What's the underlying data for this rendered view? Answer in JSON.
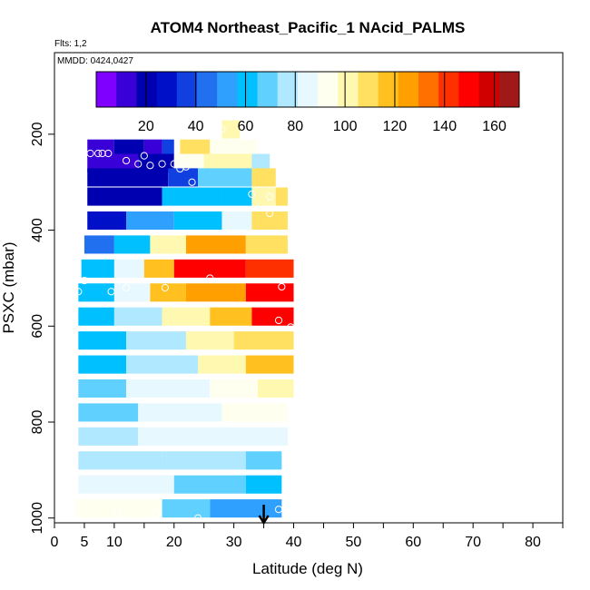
{
  "chart_data": {
    "type": "heatmap",
    "title": "ATOM4 Northeast_Pacific_1 NAcid_PALMS",
    "flights_label": "Flts: 1,2",
    "dates_label": "MMDD: 0424,0427",
    "xlabel": "Latitude (deg N)",
    "ylabel": "PSXC (mbar)",
    "xlim": [
      0,
      85
    ],
    "ylim": [
      1010,
      30
    ],
    "x_ticks": [
      0,
      5,
      10,
      20,
      30,
      40,
      50,
      60,
      70,
      80
    ],
    "y_ticks": [
      200,
      400,
      600,
      800,
      1000
    ],
    "colorbar": {
      "range": [
        0,
        170
      ],
      "ticks": [
        20,
        40,
        60,
        80,
        100,
        120,
        140,
        160
      ],
      "colors": [
        "#8000ff",
        "#3a00d8",
        "#0000b0",
        "#0010c8",
        "#1040e0",
        "#2070f0",
        "#30a0ff",
        "#00c0ff",
        "#60d0ff",
        "#b0e8ff",
        "#e8f8ff",
        "#fffff0",
        "#fff8b0",
        "#ffe060",
        "#ffc020",
        "#ffa000",
        "#ff7000",
        "#ff3000",
        "#ff0000",
        "#d00000",
        "#a01818"
      ]
    },
    "rows": [
      {
        "p": 190,
        "segments": [
          [
            28,
            31,
            100
          ]
        ]
      },
      {
        "p": 230,
        "segments": [
          [
            5.5,
            10,
            15
          ],
          [
            10,
            15,
            22
          ],
          [
            15,
            18,
            10
          ],
          [
            18,
            20,
            40
          ],
          [
            21,
            26,
            108
          ],
          [
            26,
            34,
            95
          ]
        ]
      },
      {
        "p": 260,
        "segments": [
          [
            5.5,
            14,
            14
          ],
          [
            14,
            20,
            18
          ],
          [
            20,
            25,
            96
          ],
          [
            25,
            33,
            104
          ],
          [
            33,
            36,
            80
          ]
        ]
      },
      {
        "p": 290,
        "segments": [
          [
            5.5,
            19,
            22
          ],
          [
            19,
            24,
            38
          ],
          [
            24,
            33,
            70
          ],
          [
            33,
            37,
            110
          ]
        ]
      },
      {
        "p": 330,
        "segments": [
          [
            5.5,
            18,
            24
          ],
          [
            18,
            28,
            58
          ],
          [
            28,
            33,
            60
          ],
          [
            33,
            37,
            100
          ],
          [
            37,
            39,
            108
          ]
        ]
      },
      {
        "p": 380,
        "segments": [
          [
            5.5,
            12,
            28
          ],
          [
            12,
            20,
            50
          ],
          [
            20,
            28,
            64
          ],
          [
            28,
            33,
            86
          ],
          [
            33,
            39,
            110
          ]
        ]
      },
      {
        "p": 430,
        "segments": [
          [
            5,
            10,
            42
          ],
          [
            10,
            16,
            64
          ],
          [
            16,
            22,
            100
          ],
          [
            22,
            32,
            124
          ],
          [
            32,
            39,
            112
          ]
        ]
      },
      {
        "p": 480,
        "segments": [
          [
            4.5,
            10,
            60
          ],
          [
            10,
            15,
            86
          ],
          [
            15,
            20,
            120
          ],
          [
            20,
            32,
            152
          ],
          [
            32,
            40,
            142
          ]
        ]
      },
      {
        "p": 530,
        "segments": [
          [
            4,
            10,
            62
          ],
          [
            10,
            16,
            82
          ],
          [
            16,
            22,
            118
          ],
          [
            22,
            32,
            126
          ],
          [
            32,
            40,
            146
          ]
        ]
      },
      {
        "p": 580,
        "segments": [
          [
            4,
            10,
            60
          ],
          [
            10,
            18,
            80
          ],
          [
            18,
            26,
            100
          ],
          [
            26,
            33,
            114
          ],
          [
            33,
            40,
            150
          ]
        ]
      },
      {
        "p": 630,
        "segments": [
          [
            4,
            12,
            62
          ],
          [
            12,
            22,
            80
          ],
          [
            22,
            30,
            100
          ],
          [
            30,
            40,
            112
          ]
        ]
      },
      {
        "p": 680,
        "segments": [
          [
            4,
            12,
            64
          ],
          [
            12,
            24,
            80
          ],
          [
            24,
            32,
            102
          ],
          [
            32,
            40,
            114
          ]
        ]
      },
      {
        "p": 730,
        "segments": [
          [
            4,
            12,
            66
          ],
          [
            12,
            26,
            82
          ],
          [
            26,
            34,
            96
          ],
          [
            34,
            40,
            104
          ]
        ]
      },
      {
        "p": 780,
        "segments": [
          [
            4,
            14,
            70
          ],
          [
            14,
            28,
            84
          ],
          [
            28,
            39,
            94
          ]
        ]
      },
      {
        "p": 830,
        "segments": [
          [
            4,
            14,
            74
          ],
          [
            14,
            30,
            82
          ],
          [
            30,
            39,
            86
          ]
        ]
      },
      {
        "p": 880,
        "segments": [
          [
            4,
            18,
            78
          ],
          [
            18,
            32,
            76
          ],
          [
            32,
            38,
            70
          ]
        ]
      },
      {
        "p": 930,
        "segments": [
          [
            4,
            20,
            82
          ],
          [
            20,
            32,
            66
          ],
          [
            32,
            38,
            58
          ]
        ]
      },
      {
        "p": 980,
        "segments": [
          [
            3.5,
            18,
            96
          ],
          [
            18,
            26,
            72
          ],
          [
            26,
            38,
            56
          ]
        ]
      }
    ],
    "sample_points": [
      [
        6,
        240
      ],
      [
        7.3,
        240
      ],
      [
        8,
        240
      ],
      [
        9,
        240
      ],
      [
        12,
        255
      ],
      [
        14,
        262
      ],
      [
        15,
        245
      ],
      [
        16,
        265
      ],
      [
        18,
        262
      ],
      [
        20,
        262
      ],
      [
        21,
        272
      ],
      [
        22,
        268
      ],
      [
        23,
        300
      ],
      [
        28,
        190
      ],
      [
        33,
        325
      ],
      [
        36,
        330
      ],
      [
        36,
        365
      ],
      [
        5,
        505
      ],
      [
        4,
        528
      ],
      [
        9.5,
        528
      ],
      [
        12,
        520
      ],
      [
        18.5,
        520
      ],
      [
        26,
        500
      ],
      [
        38,
        518
      ],
      [
        37.5,
        588
      ],
      [
        39.5,
        602
      ],
      [
        10.5,
        990
      ],
      [
        17,
        990
      ],
      [
        24,
        1000
      ],
      [
        37.5,
        982
      ]
    ],
    "arrow_latitude": 35
  }
}
